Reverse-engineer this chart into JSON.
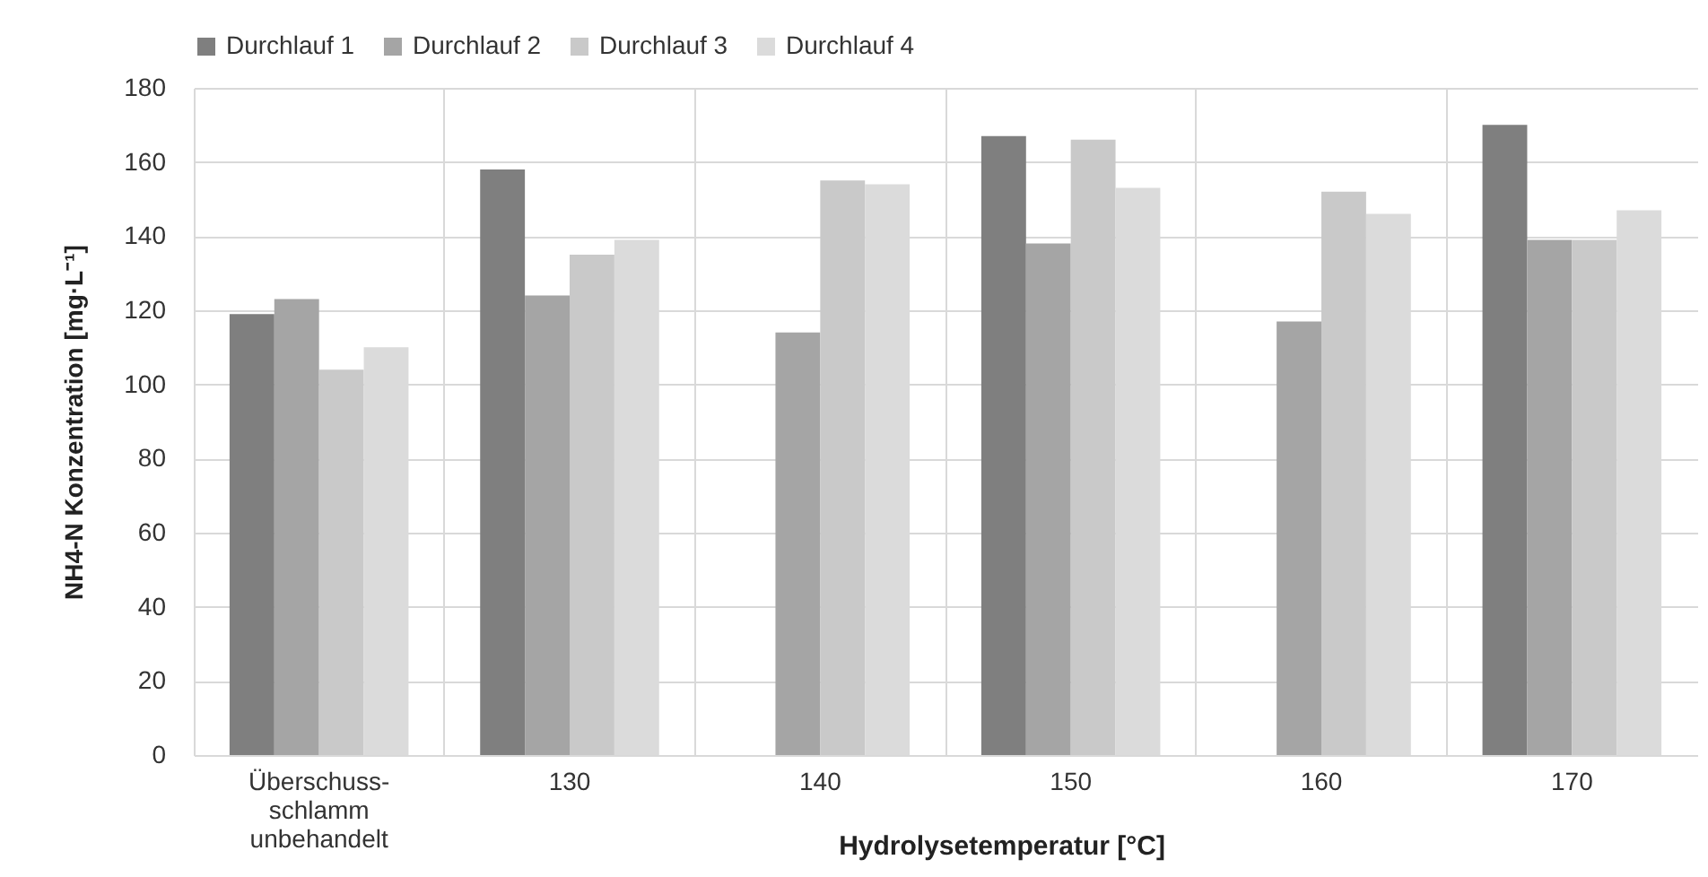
{
  "chart_data": {
    "type": "bar",
    "xlabel": "Hydrolysetemperatur [°C]",
    "ylabel": "NH4-N Konzentration  [mg·L⁻¹]",
    "categories": [
      "Überschuss-\nschlamm\nunbehandelt",
      "130",
      "140",
      "150",
      "160",
      "170"
    ],
    "series": [
      {
        "name": "Durchlauf 1",
        "color": "#7f7f7f",
        "values": [
          119,
          158,
          null,
          167,
          null,
          170
        ]
      },
      {
        "name": "Durchlauf 2",
        "color": "#a5a5a5",
        "values": [
          123,
          124,
          114,
          138,
          117,
          139
        ]
      },
      {
        "name": "Durchlauf 3",
        "color": "#c9c9c9",
        "values": [
          104,
          135,
          155,
          166,
          152,
          139
        ]
      },
      {
        "name": "Durchlauf 4",
        "color": "#dbdbdb",
        "values": [
          110,
          139,
          154,
          153,
          146,
          147
        ]
      }
    ],
    "ylim": [
      0,
      180
    ],
    "yticks": [
      0,
      20,
      40,
      60,
      80,
      100,
      120,
      140,
      160,
      180
    ],
    "grid": true,
    "legend": "top"
  }
}
